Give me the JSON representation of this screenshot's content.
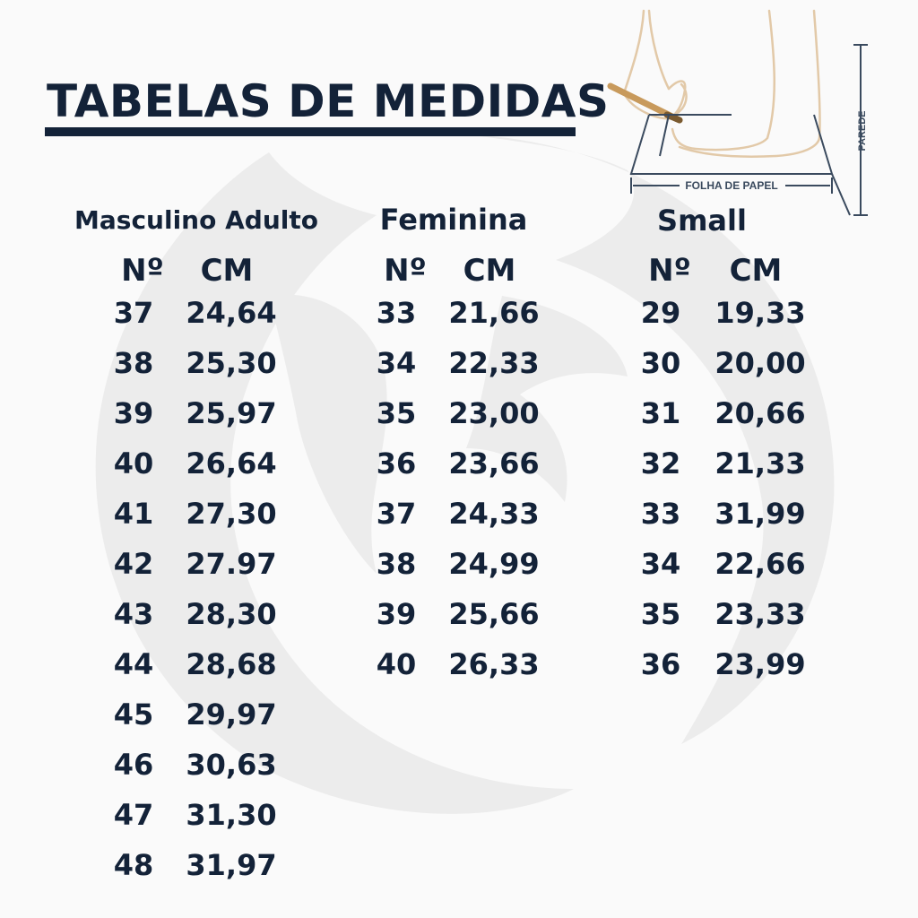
{
  "title": "TABELAS DE MEDIDAS",
  "illustration": {
    "paper_label": "FOLHA DE PAPEL",
    "wall_label": "PAREDE",
    "icon": "foot-measuring-icon"
  },
  "colors": {
    "text": "#132238",
    "background": "#fafafa",
    "watermark": "#ececec",
    "line_art": "#e2c9a8"
  },
  "tables": [
    {
      "title": "Masculino Adulto",
      "col_size": "Nº",
      "col_cm": "CM",
      "rows": [
        {
          "size": "37",
          "cm": "24,64"
        },
        {
          "size": "38",
          "cm": "25,30"
        },
        {
          "size": "39",
          "cm": "25,97"
        },
        {
          "size": "40",
          "cm": "26,64"
        },
        {
          "size": "41",
          "cm": "27,30"
        },
        {
          "size": "42",
          "cm": "27.97"
        },
        {
          "size": "43",
          "cm": "28,30"
        },
        {
          "size": "44",
          "cm": "28,68"
        },
        {
          "size": "45",
          "cm": "29,97"
        },
        {
          "size": "46",
          "cm": "30,63"
        },
        {
          "size": "47",
          "cm": "31,30"
        },
        {
          "size": "48",
          "cm": "31,97"
        }
      ]
    },
    {
      "title": "Feminina",
      "col_size": "Nº",
      "col_cm": "CM",
      "rows": [
        {
          "size": "33",
          "cm": "21,66"
        },
        {
          "size": "34",
          "cm": "22,33"
        },
        {
          "size": "35",
          "cm": "23,00"
        },
        {
          "size": "36",
          "cm": "23,66"
        },
        {
          "size": "37",
          "cm": "24,33"
        },
        {
          "size": "38",
          "cm": "24,99"
        },
        {
          "size": "39",
          "cm": "25,66"
        },
        {
          "size": "40",
          "cm": "26,33"
        }
      ]
    },
    {
      "title": "Small",
      "col_size": "Nº",
      "col_cm": "CM",
      "rows": [
        {
          "size": "29",
          "cm": "19,33"
        },
        {
          "size": "30",
          "cm": "20,00"
        },
        {
          "size": "31",
          "cm": "20,66"
        },
        {
          "size": "32",
          "cm": "21,33"
        },
        {
          "size": "33",
          "cm": "31,99"
        },
        {
          "size": "34",
          "cm": "22,66"
        },
        {
          "size": "35",
          "cm": "23,33"
        },
        {
          "size": "36",
          "cm": "23,99"
        }
      ]
    }
  ]
}
